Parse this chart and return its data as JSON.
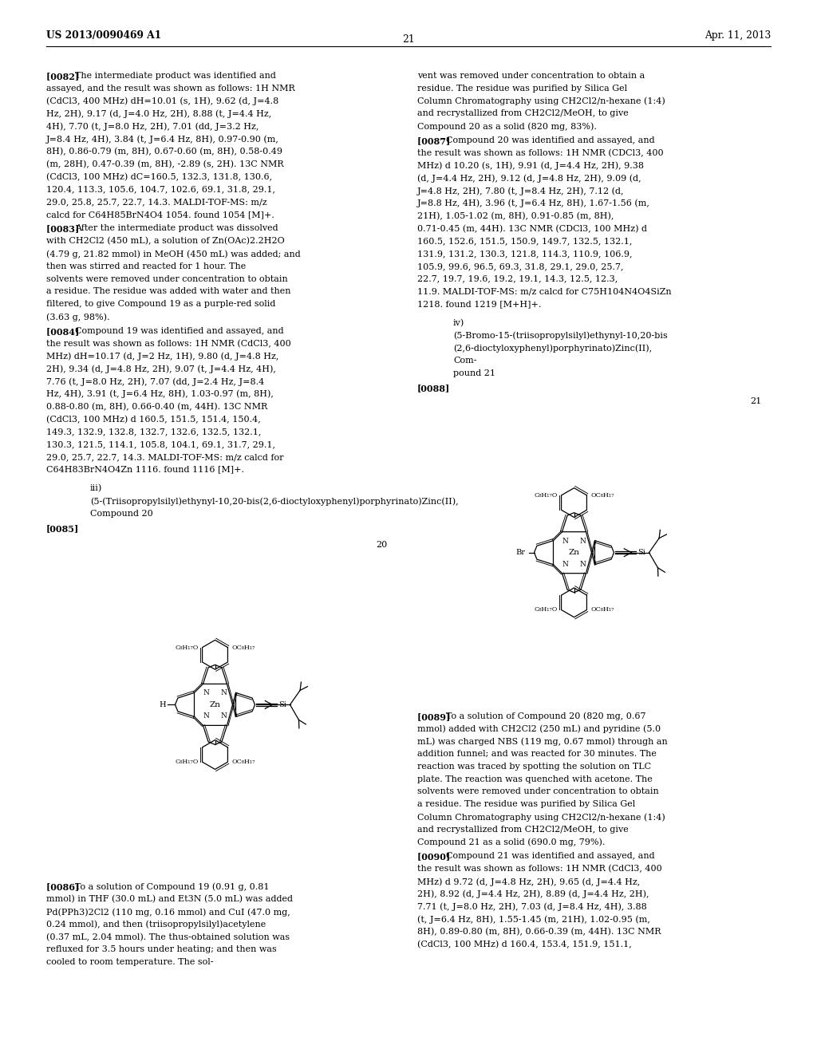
{
  "page_width": 10.24,
  "page_height": 13.2,
  "header_left": "US 2013/0090469 A1",
  "header_right": "Apr. 11, 2013",
  "page_number": "21",
  "para_82": "[0082]  The intermediate product was identified and assayed, and the result was shown as follows: 1H NMR (CdCl3, 400 MHz) dH=10.01 (s, 1H), 9.62 (d, J=4.8 Hz, 2H), 9.17 (d, J=4.0 Hz, 2H), 8.88 (t, J=4.4 Hz, 4H), 7.70 (t, J=8.0 Hz, 2H), 7.01 (dd, J=3.2 Hz, J=8.4 Hz, 4H), 3.84 (t, J=6.4 Hz, 8H), 0.97-0.90 (m, 8H), 0.86-0.79 (m, 8H), 0.67-0.60 (m, 8H), 0.58-0.49 (m, 28H), 0.47-0.39 (m, 8H), -2.89 (s, 2H). 13C NMR (CdCl3, 100 MHz) dC=160.5, 132.3, 131.8, 130.6, 120.4, 113.3, 105.6, 104.7, 102.6, 69.1, 31.8, 29.1, 29.0, 25.8, 25.7, 22.7, 14.3. MALDI-TOF-MS: m/z calcd for C64H85BrN4O4 1054. found 1054 [M]+.",
  "para_83": "[0083]  After the intermediate product was dissolved with CH2Cl2 (450 mL), a solution of Zn(OAc)2.2H2O (4.79 g, 21.82 mmol) in MeOH (450 mL) was added; and then was stirred and reacted for 1 hour. The solvents were removed under concentration to obtain a residue. The residue was added with water and then filtered, to give Compound 19 as a purple-red solid (3.63 g, 98%).",
  "para_84": "[0084]  Compound 19 was identified and assayed, and the result was shown as follows: 1H NMR (CdCl3, 400 MHz) dH=10.17 (d, J=2 Hz, 1H), 9.80 (d, J=4.8 Hz, 2H), 9.34 (d, J=4.8 Hz, 2H), 9.07 (t, J=4.4 Hz, 4H), 7.76 (t, J=8.0 Hz, 2H), 7.07 (dd, J=2.4 Hz, J=8.4 Hz, 4H), 3.91 (t, J=6.4 Hz, 8H), 1.03-0.97 (m, 8H), 0.88-0.80 (m, 8H), 0.66-0.40 (m, 44H). 13C NMR (CdCl3, 100 MHz) d 160.5, 151.5, 151.4, 150.4, 149.3, 132.9, 132.8, 132.7, 132.6, 132.5, 132.1, 130.3, 121.5, 114.1, 105.8, 104.1, 69.1, 31.7, 29.1, 29.0, 25.7, 22.7, 14.3. MALDI-TOF-MS: m/z calcd for C64H83BrN4O4Zn 1116. found 1116 [M]+.",
  "para_iii": "iii) (5-(Triisopropylsilyl)ethynyl-10,20-bis(2,6-dioctyloxyphenyl)porphyrinato)Zinc(II), Compound 20",
  "para_85": "[0085]",
  "right_r1": "vent was removed under concentration to obtain a residue. The residue was purified by Silica Gel Column Chromatography using CH2Cl2/n-hexane (1:4) and recrystallized from CH2Cl2/MeOH, to give Compound 20 as a solid (820 mg, 83%).",
  "para_87": "[0087]  Compound 20 was identified and assayed, and the result was shown as follows: 1H NMR (CDCl3, 400 MHz) d 10.20 (s, 1H), 9.91 (d, J=4.4 Hz, 2H), 9.38 (d, J=4.4 Hz, 2H), 9.12 (d, J=4.8 Hz, 2H), 9.09 (d, J=4.8 Hz, 2H), 7.80 (t, J=8.4 Hz, 2H), 7.12 (d, J=8.8 Hz, 4H), 3.96 (t, J=6.4 Hz, 8H), 1.67-1.56 (m, 21H), 1.05-1.02 (m, 8H), 0.91-0.85 (m, 8H), 0.71-0.45 (m, 44H). 13C NMR (CDCl3, 100 MHz) d 160.5, 152.6, 151.5, 150.9, 149.7, 132.5, 132.1, 131.9, 131.2, 130.3, 121.8, 114.3, 110.9, 106.9, 105.9, 99.6, 96.5, 69.3, 31.8, 29.1, 29.0, 25.7, 22.7, 19.7, 19.6, 19.2, 19.1, 14.3, 12.5, 12.3, 11.9. MALDI-TOF-MS: m/z calcd for C75H104N4O4SiZn 1218. found 1219 [M+H]+.",
  "para_iv": "iv) (5-Bromo-15-(triisopropylsilyl)ethynyl-10,20-bis\n(2,6-dioctyloxyphenyl)porphyrinato)Zinc(II), Com-\npound 21",
  "para_88": "[0088]",
  "para_89": "[0089]  To a solution of Compound 20 (820 mg, 0.67 mmol) added with CH2Cl2 (250 mL) and pyridine (5.0 mL) was charged NBS (119 mg, 0.67 mmol) through an addition funnel; and was reacted for 30 minutes. The reaction was traced by spotting the solution on TLC plate. The reaction was quenched with acetone. The solvents were removed under concentration to obtain a residue. The residue was purified by Silica Gel Column Chromatography using CH2Cl2/n-hexane (1:4) and recrystallized from CH2Cl2/MeOH, to give Compound 21 as a solid (690.0 mg, 79%).",
  "para_90": "[0090]  Compound 21 was identified and assayed, and the result was shown as follows: 1H NMR (CdCl3, 400 MHz) d 9.72 (d, J=4.8 Hz, 2H), 9.65 (d, J=4.4 Hz, 2H), 8.92 (d, J=4.4 Hz, 2H), 8.89 (d, J=4.4 Hz, 2H), 7.71 (t, J=8.0 Hz, 2H), 7.03 (d, J=8.4 Hz, 4H), 3.88 (t, J=6.4 Hz, 8H), 1.55-1.45 (m, 21H), 1.02-0.95 (m, 8H), 0.89-0.80 (m, 8H), 0.66-0.39 (m, 44H). 13C NMR (CdCl3, 100 MHz) d 160.4, 153.4, 151.9, 151.1,"
}
